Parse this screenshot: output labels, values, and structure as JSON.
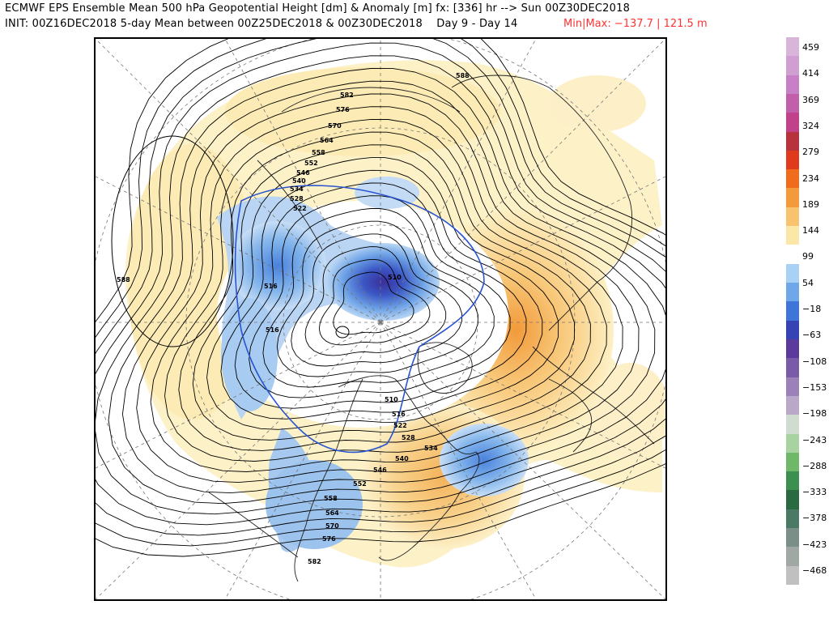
{
  "header": {
    "line1": "ECMWF EPS Ensemble Mean 500 hPa Geopotential Height [dm] & Anomaly [m] fx: [336] hr --> Sun 00Z30DEC2018",
    "line2": "INIT: 00Z16DEC2018 5-day Mean between 00Z25DEC2018 & 00Z30DEC2018    Day 9 - Day 14",
    "minmax": "Min|Max: −137.7 | 121.5 m"
  },
  "colorbar": {
    "labels": [
      "459",
      "414",
      "369",
      "324",
      "279",
      "234",
      "189",
      "144",
      "99",
      "54",
      "−18",
      "−63",
      "−108",
      "−153",
      "−198",
      "−243",
      "−288",
      "−333",
      "−378",
      "−423",
      "−468"
    ],
    "colors": [
      "#d9b6d9",
      "#cf9fd2",
      "#c77fc5",
      "#c35fa8",
      "#c1418a",
      "#b8323c",
      "#e03a1e",
      "#f06b1a",
      "#f59a3a",
      "#f8c26e",
      "#fbe7a8",
      "#ffffff",
      "#a9d0f5",
      "#6fa8e8",
      "#3f74d8",
      "#3543b5",
      "#5a3a9c",
      "#7a5ba8",
      "#9c80b8",
      "#b9a8c8",
      "#cfdccf",
      "#a8d3a0",
      "#6fb86a",
      "#3c8f4f",
      "#2a6a40",
      "#4a7a66",
      "#7a8f88",
      "#a0a8a4",
      "#c0c0c0"
    ]
  },
  "contour_labels": [
    "588",
    "582",
    "576",
    "570",
    "564",
    "558",
    "552",
    "546",
    "540",
    "534",
    "528",
    "522",
    "516",
    "510",
    "588",
    "516",
    "510",
    "516",
    "522",
    "528",
    "534",
    "540",
    "546",
    "552",
    "558",
    "564",
    "570",
    "576",
    "582"
  ],
  "map": {
    "projection": "north-polar-stereographic",
    "anomaly_positive_color": "#f7b555",
    "anomaly_negative_color": "#3a6fd0"
  }
}
